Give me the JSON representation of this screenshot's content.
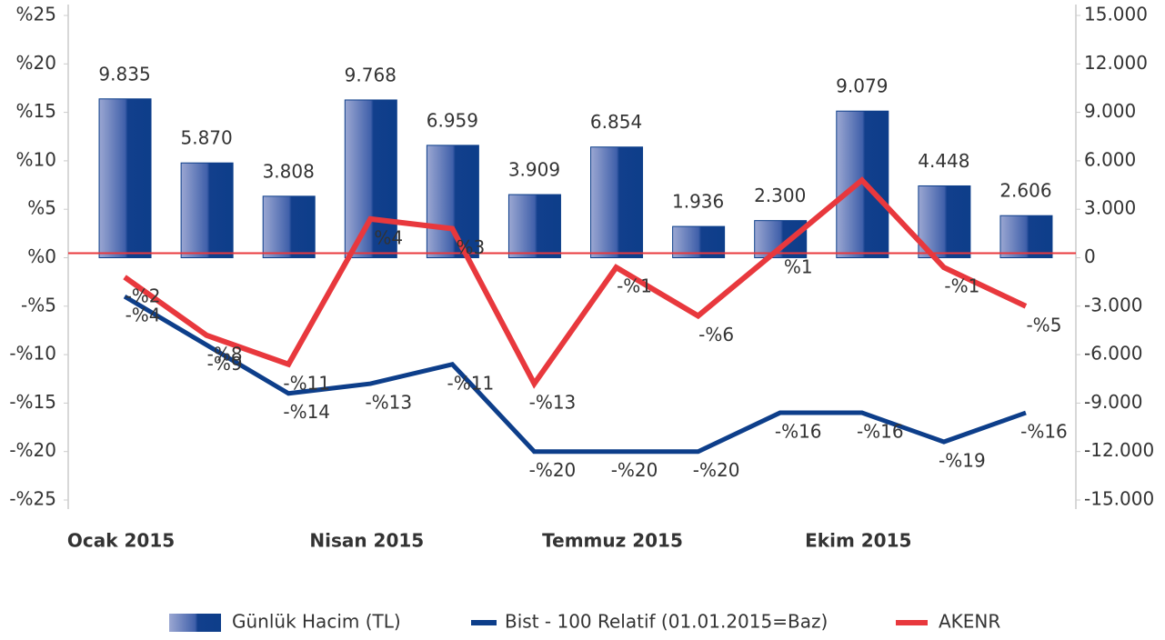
{
  "chart_data": {
    "type": "bar-line",
    "categories": [
      "Ocak 2015",
      null,
      null,
      "Nisan 2015",
      null,
      null,
      "Temmuz 2015",
      null,
      null,
      "Ekim 2015",
      null,
      null
    ],
    "ylim": [
      -25,
      25
    ],
    "yticks": [
      {
        "value": -25,
        "label": "-%25"
      },
      {
        "value": -20,
        "label": "-%20"
      },
      {
        "value": -15,
        "label": "-%15"
      },
      {
        "value": -10,
        "label": "-%10"
      },
      {
        "value": -5,
        "label": "-%5"
      },
      {
        "value": 0,
        "label": "%0"
      },
      {
        "value": 5,
        "label": "%5"
      },
      {
        "value": 10,
        "label": "%10"
      },
      {
        "value": 15,
        "label": "%15"
      },
      {
        "value": 20,
        "label": "%20"
      },
      {
        "value": 25,
        "label": "%25"
      }
    ],
    "y2lim": [
      -15000,
      15000
    ],
    "y2ticks": [
      {
        "value": -15000,
        "label": "-15.000"
      },
      {
        "value": -12000,
        "label": "-12.000"
      },
      {
        "value": -9000,
        "label": "-9.000"
      },
      {
        "value": -6000,
        "label": "-6.000"
      },
      {
        "value": -3000,
        "label": "-3.000"
      },
      0,
      {
        "value": 3000,
        "label": "3.000"
      },
      {
        "value": 6000,
        "label": "6.000"
      },
      {
        "value": 9000,
        "label": "9.000"
      },
      {
        "value": 12000,
        "label": "12.000"
      },
      {
        "value": 15000,
        "label": "15.000"
      }
    ],
    "series": [
      {
        "name": "Günlük Hacim (TL)",
        "type": "bar",
        "axis": "y2",
        "color": "#0d3e8a",
        "values": [
          9835,
          5870,
          3808,
          9768,
          6959,
          3909,
          6854,
          1936,
          2300,
          9079,
          4448,
          2606
        ],
        "value_labels": [
          "9.835",
          "5.870",
          "3.808",
          "9.768",
          "6.959",
          "3.909",
          "6.854",
          "1.936",
          "2.300",
          "9.079",
          "4.448",
          "2.606"
        ]
      },
      {
        "name": "Bist - 100 Relatif (01.01.2015=Baz)",
        "type": "line",
        "color": "#0d3e8a",
        "values": [
          -4,
          -9,
          -14,
          -13,
          -11,
          -20,
          -20,
          -20,
          -16,
          -16,
          -19,
          -16
        ],
        "value_labels": [
          "-%4",
          "-%9",
          "-%14",
          "-%13",
          "-%11",
          "-%20",
          "-%20",
          "-%20",
          "-%16",
          "-%16",
          "-%19",
          "-%16"
        ]
      },
      {
        "name": "AKENR",
        "type": "line",
        "color": "#e8383d",
        "values": [
          -2,
          -8,
          -11,
          4,
          3,
          -13,
          -1,
          -6,
          1,
          8,
          -1,
          -5
        ],
        "value_labels": [
          "-%2",
          "-%8",
          "-%11",
          "%4",
          "%3",
          "-%13",
          "-%1",
          "-%6",
          "%1",
          null,
          "-%1",
          "-%5"
        ]
      }
    ]
  }
}
